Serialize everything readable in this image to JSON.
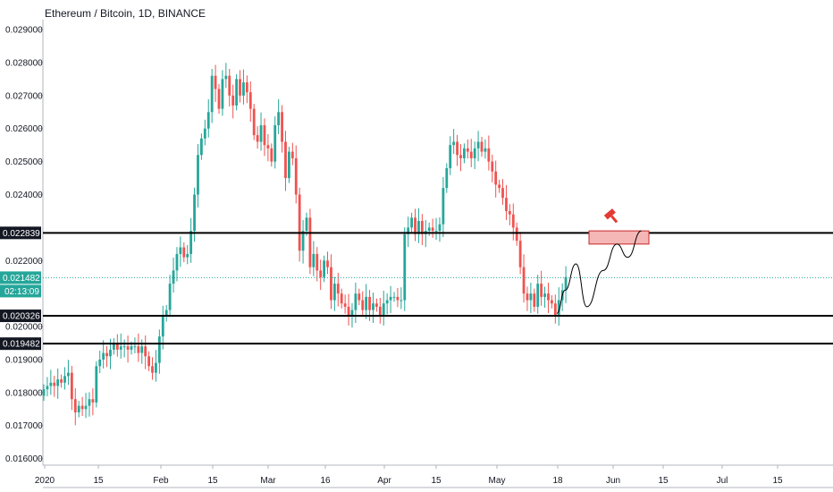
{
  "header": {
    "title": "Ethereum / Bitcoin, 1D, BINANCE"
  },
  "colors": {
    "up": "#26a69a",
    "down": "#ef5350",
    "line": "#000000",
    "zone_fill": "#f5b6b6",
    "zone_stroke": "#c62828",
    "current": "#26a69a",
    "tag_dark": "#131722"
  },
  "chart_data": {
    "type": "candlestick",
    "title": "Ethereum / Bitcoin, 1D, BINANCE",
    "ylim": [
      0.0158,
      0.0293
    ],
    "y_ticks": [
      "0.029000",
      "0.028000",
      "0.027000",
      "0.026000",
      "0.025000",
      "0.024000",
      "0.022000",
      "0.020000",
      "0.019000",
      "0.018000",
      "0.017000",
      "0.016000"
    ],
    "x_ticks": [
      "2020",
      "15",
      "Feb",
      "15",
      "Mar",
      "16",
      "Apr",
      "15",
      "May",
      "18",
      "Jun",
      "15",
      "Jul",
      "15"
    ],
    "horizontal_levels": [
      {
        "value": 0.022839,
        "label": "0.022839"
      },
      {
        "value": 0.020326,
        "label": "0.020326"
      },
      {
        "value": 0.019482,
        "label": "0.019482"
      }
    ],
    "current_price": {
      "value": 0.021482,
      "label": "0.021482",
      "countdown": "02:13:09"
    },
    "target_zone": {
      "low": 0.0225,
      "high": 0.0229
    },
    "closes": [
      0.0181,
      0.0182,
      0.0183,
      0.0182,
      0.0184,
      0.0183,
      0.0185,
      0.0186,
      0.0178,
      0.0174,
      0.0176,
      0.0175,
      0.0176,
      0.0178,
      0.0177,
      0.0188,
      0.019,
      0.0192,
      0.0191,
      0.0193,
      0.0195,
      0.0193,
      0.0194,
      0.0194,
      0.0193,
      0.0194,
      0.0194,
      0.0192,
      0.0194,
      0.0191,
      0.0188,
      0.0186,
      0.0189,
      0.0197,
      0.0203,
      0.0205,
      0.0213,
      0.0217,
      0.0222,
      0.0224,
      0.0221,
      0.0222,
      0.0229,
      0.024,
      0.0252,
      0.0257,
      0.026,
      0.0265,
      0.0276,
      0.0272,
      0.0266,
      0.0275,
      0.0276,
      0.027,
      0.0267,
      0.0275,
      0.027,
      0.0274,
      0.0271,
      0.0266,
      0.0258,
      0.0256,
      0.0261,
      0.0255,
      0.0254,
      0.025,
      0.0261,
      0.0265,
      0.0256,
      0.0245,
      0.0253,
      0.0251,
      0.024,
      0.0223,
      0.0229,
      0.0233,
      0.0218,
      0.0222,
      0.0217,
      0.0215,
      0.022,
      0.0218,
      0.0208,
      0.0213,
      0.021,
      0.0207,
      0.0206,
      0.0203,
      0.0205,
      0.021,
      0.0208,
      0.0205,
      0.0209,
      0.0205,
      0.0207,
      0.0206,
      0.0203,
      0.0207,
      0.0208,
      0.0209,
      0.0209,
      0.0208,
      0.0208,
      0.0228,
      0.023,
      0.0233,
      0.0228,
      0.0232,
      0.0228,
      0.0229,
      0.023,
      0.0229,
      0.0229,
      0.0231,
      0.0242,
      0.0248,
      0.0255,
      0.0256,
      0.0252,
      0.0251,
      0.0254,
      0.0253,
      0.0251,
      0.0254,
      0.0256,
      0.0253,
      0.0254,
      0.025,
      0.0247,
      0.0243,
      0.0242,
      0.0239,
      0.0235,
      0.0234,
      0.023,
      0.0226,
      0.0218,
      0.021,
      0.0208,
      0.021,
      0.0206,
      0.0213,
      0.0209,
      0.021,
      0.0208,
      0.0207,
      0.0203,
      0.0208,
      0.0211,
      0.0215
    ],
    "projection": [
      [
        0.0204,
        0
      ],
      [
        0.0211,
        3
      ],
      [
        0.0219,
        7
      ],
      [
        0.0206,
        11
      ],
      [
        0.0217,
        17
      ],
      [
        0.0225,
        22
      ],
      [
        0.0221,
        26
      ],
      [
        0.0229,
        31
      ]
    ]
  }
}
